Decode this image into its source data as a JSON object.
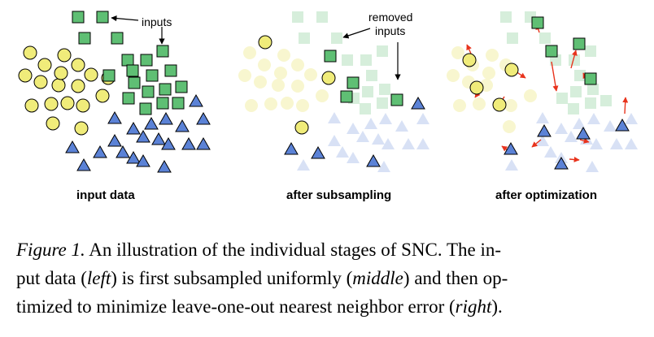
{
  "panels": {
    "left_label": "input data",
    "middle_label": "after subsampling",
    "right_label": "after optimization"
  },
  "annotations": {
    "inputs": "inputs",
    "removed_line1": "removed",
    "removed_line2": "inputs"
  },
  "caption": {
    "fig_label": "Figure 1.",
    "line1_rest": " An illustration of the individual stages of SNC. The in-",
    "line2_a": "put data (",
    "line2_left": "left",
    "line2_b": ") is first subsampled uniformly (",
    "line2_middle": "middle",
    "line2_c": ") and then op-",
    "line3_a": "timized to minimize leave-one-out nearest neighbor error (",
    "line3_right": "right",
    "line3_b": ")."
  },
  "colors": {
    "circle": "#f0ec7a",
    "square": "#5fbf74",
    "triangle": "#5b82d6",
    "arrow_red": "#e8331c",
    "faded_circle": "#f8f6cf",
    "faded_square": "#d6eedb",
    "faded_triangle": "#d8e1f5"
  }
}
